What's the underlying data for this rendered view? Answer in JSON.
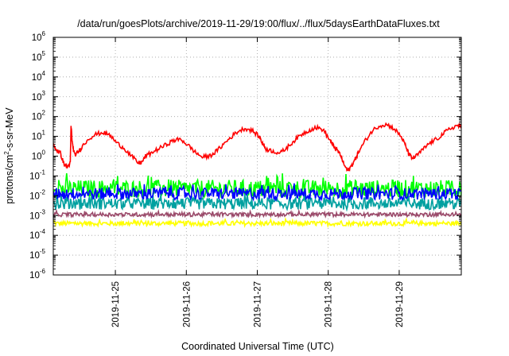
{
  "chart_data": {
    "type": "line",
    "title": "/data/run/goesPlots/archive/2019-11-29/19:00/flux/../flux/5daysEarthDataFluxes.txt",
    "xlabel": "Coordinated Universal Time (UTC)",
    "ylabel": {
      "prefix": "protons/cm",
      "sup": "2",
      "suffix": "-s-sr-MeV"
    },
    "yscale": "log",
    "ylim": [
      -6,
      6
    ],
    "y_ticks": [
      {
        "base": "10",
        "exp": "-6"
      },
      {
        "base": "10",
        "exp": "-5"
      },
      {
        "base": "10",
        "exp": "-4"
      },
      {
        "base": "10",
        "exp": "-3"
      },
      {
        "base": "10",
        "exp": "-2"
      },
      {
        "base": "10",
        "exp": "-1"
      },
      {
        "base": "10",
        "exp": "0"
      },
      {
        "base": "10",
        "exp": "1"
      },
      {
        "base": "10",
        "exp": "2"
      },
      {
        "base": "10",
        "exp": "3"
      },
      {
        "base": "10",
        "exp": "4"
      },
      {
        "base": "10",
        "exp": "5"
      },
      {
        "base": "10",
        "exp": "6"
      }
    ],
    "xlim": [
      "2019-11-24 03:00",
      "2019-11-29 21:00"
    ],
    "x_ticks": [
      "2019-11-25",
      "2019-11-26",
      "2019-11-27",
      "2019-11-28",
      "2019-11-29"
    ],
    "grid": true,
    "series": [
      {
        "color": "#ff0000",
        "x_days_start": "2019-11-24 03:00",
        "values_log10": [
          [
            0.0,
            0.55
          ],
          [
            0.05,
            0.3
          ],
          [
            0.1,
            0.15
          ],
          [
            0.15,
            -0.4
          ],
          [
            0.2,
            -0.55
          ],
          [
            0.24,
            -0.35
          ],
          [
            0.25,
            1.55
          ],
          [
            0.27,
            0.6
          ],
          [
            0.3,
            0.05
          ],
          [
            0.35,
            0.2
          ],
          [
            0.4,
            0.45
          ],
          [
            0.5,
            0.9
          ],
          [
            0.6,
            1.1
          ],
          [
            0.7,
            1.2
          ],
          [
            0.8,
            1.05
          ],
          [
            0.9,
            0.65
          ],
          [
            1.0,
            0.4
          ],
          [
            1.1,
            0.0
          ],
          [
            1.2,
            -0.35
          ],
          [
            1.25,
            -0.3
          ],
          [
            1.3,
            0.0
          ],
          [
            1.4,
            0.2
          ],
          [
            1.5,
            0.4
          ],
          [
            1.6,
            0.6
          ],
          [
            1.7,
            0.8
          ],
          [
            1.8,
            0.85
          ],
          [
            1.9,
            0.55
          ],
          [
            2.0,
            0.2
          ],
          [
            2.1,
            -0.05
          ],
          [
            2.2,
            0.0
          ],
          [
            2.3,
            0.25
          ],
          [
            2.4,
            0.6
          ],
          [
            2.5,
            0.95
          ],
          [
            2.6,
            1.25
          ],
          [
            2.7,
            1.4
          ],
          [
            2.8,
            1.3
          ],
          [
            2.9,
            1.0
          ],
          [
            2.95,
            0.65
          ],
          [
            3.0,
            0.35
          ],
          [
            3.1,
            0.25
          ],
          [
            3.2,
            0.15
          ],
          [
            3.3,
            0.45
          ],
          [
            3.4,
            0.8
          ],
          [
            3.5,
            1.1
          ],
          [
            3.6,
            1.3
          ],
          [
            3.7,
            1.45
          ],
          [
            3.8,
            1.35
          ],
          [
            3.9,
            0.8
          ],
          [
            3.95,
            0.5
          ],
          [
            4.0,
            0.3
          ],
          [
            4.05,
            0.05
          ],
          [
            4.1,
            -0.45
          ],
          [
            4.15,
            -0.75
          ],
          [
            4.2,
            -0.5
          ],
          [
            4.25,
            -0.2
          ],
          [
            4.3,
            0.2
          ],
          [
            4.4,
            0.8
          ],
          [
            4.5,
            1.3
          ],
          [
            4.6,
            1.55
          ],
          [
            4.7,
            1.6
          ],
          [
            4.8,
            1.4
          ],
          [
            4.9,
            1.0
          ],
          [
            4.95,
            0.65
          ],
          [
            5.0,
            0.2
          ],
          [
            5.05,
            -0.1
          ],
          [
            5.1,
            -0.05
          ],
          [
            5.2,
            0.3
          ],
          [
            5.3,
            0.65
          ],
          [
            5.4,
            0.85
          ],
          [
            5.5,
            1.15
          ],
          [
            5.6,
            1.4
          ],
          [
            5.7,
            1.55
          ],
          [
            5.75,
            1.45
          ]
        ]
      },
      {
        "color": "#00ff00",
        "center_log10": -1.65,
        "spread": 0.45
      },
      {
        "color": "#0000ff",
        "center_log10": -1.9,
        "spread": 0.3
      },
      {
        "color": "#00a0a0",
        "center_log10": -2.4,
        "spread": 0.3
      },
      {
        "color": "#ffff00",
        "center_log10": -3.4,
        "spread": 0.12
      },
      {
        "color": "#9b4a6a",
        "center_log10": -2.95,
        "spread": 0.1
      }
    ]
  }
}
